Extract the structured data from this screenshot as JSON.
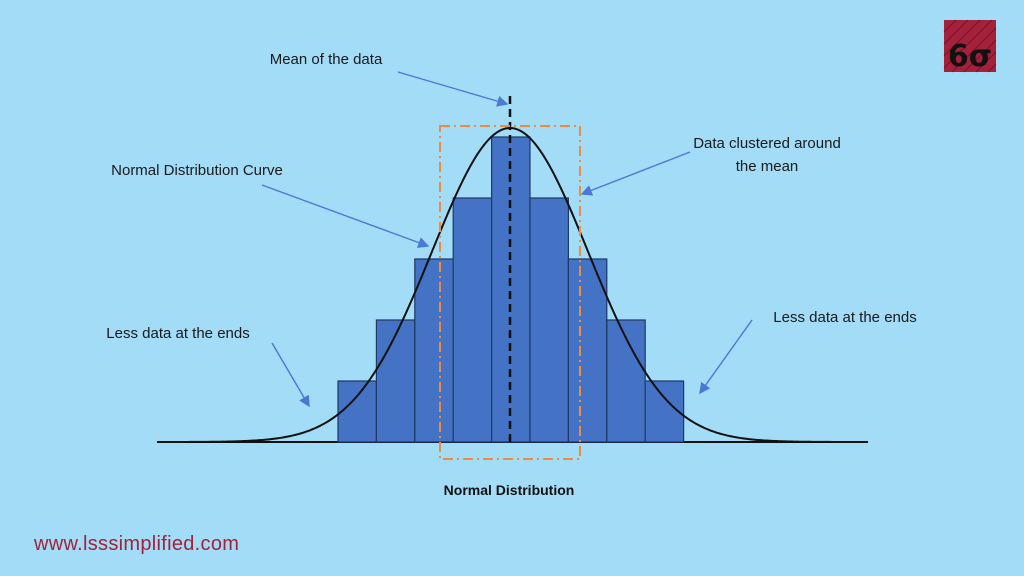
{
  "labels": {
    "mean": "Mean of the data",
    "curve": "Normal Distribution Curve",
    "clustered_line1": "Data clustered around",
    "clustered_line2": "the mean",
    "ends_left": "Less data at the ends",
    "ends_right": "Less data at the ends",
    "title": "Normal Distribution",
    "website": "www.lsssimplified.com"
  },
  "logo": {
    "text": "6σ",
    "bg_color": "#a3213a"
  },
  "histogram": {
    "bar_heights": [
      1,
      2,
      3,
      4,
      5,
      4,
      3,
      2,
      1
    ],
    "bar_color": "#4472c4"
  },
  "colors": {
    "background": "#a3dcf7",
    "cluster_box": "#f08a3c",
    "arrow": "#4a78d4",
    "website_text": "#a3213a"
  }
}
